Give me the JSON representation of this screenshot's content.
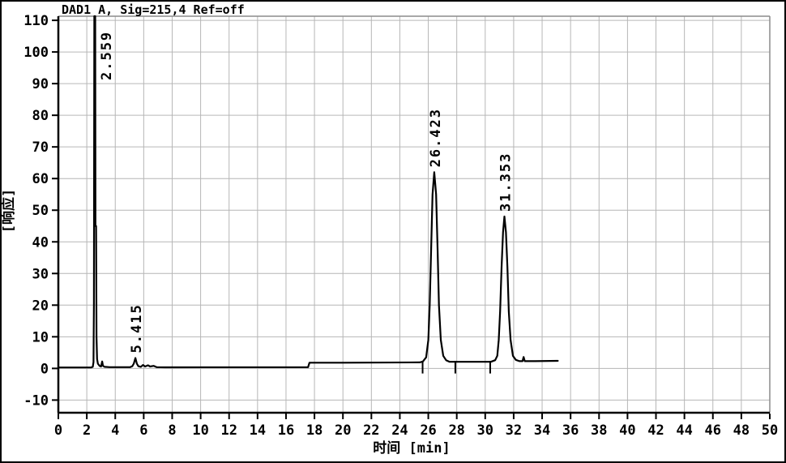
{
  "window": {
    "title": "DAD1 A, Sig=215,4 Ref=off"
  },
  "chart_data": {
    "type": "line",
    "title": "DAD1 A, Sig=215,4 Ref=off",
    "xlabel": "时间 [min]",
    "ylabel": "[响应]",
    "xlim": [
      0,
      50
    ],
    "ylim": [
      -14,
      111.3
    ],
    "x_ticks": [
      0,
      2,
      4,
      6,
      8,
      10,
      12,
      14,
      16,
      18,
      20,
      22,
      24,
      26,
      28,
      30,
      32,
      34,
      36,
      38,
      40,
      42,
      44,
      46,
      48,
      50
    ],
    "y_ticks": [
      -10,
      0,
      10,
      20,
      30,
      40,
      50,
      60,
      70,
      80,
      90,
      100,
      110
    ],
    "grid": true,
    "legend": null,
    "colors": {
      "trace": "#000000",
      "grid": "#b6b6b6",
      "axis": "#000000",
      "frame": "#8c8c8c",
      "background": "#ffffff",
      "text": "#000000"
    },
    "peaks": [
      {
        "label": "2.559",
        "time": 2.559,
        "height": 111.3,
        "clipped": true
      },
      {
        "label": "5.415",
        "time": 5.415,
        "height": 3.3,
        "clipped": false
      },
      {
        "label": "26.423",
        "time": 26.423,
        "height": 62,
        "clipped": false
      },
      {
        "label": "31.353",
        "time": 31.353,
        "height": 48,
        "clipped": false
      }
    ],
    "integration_ticks": [
      25.6,
      27.9,
      30.35
    ],
    "trace": [
      [
        0,
        0.3
      ],
      [
        2.3,
        0.3
      ],
      [
        2.42,
        0.5
      ],
      [
        2.47,
        2
      ],
      [
        2.5,
        20
      ],
      [
        2.53,
        111.3
      ],
      [
        2.59,
        111.3
      ],
      [
        2.61,
        45
      ],
      [
        2.655,
        45
      ],
      [
        2.68,
        10
      ],
      [
        2.72,
        3
      ],
      [
        2.78,
        1.5
      ],
      [
        2.9,
        0.8
      ],
      [
        3.0,
        0.6
      ],
      [
        3.08,
        2.2
      ],
      [
        3.14,
        0.8
      ],
      [
        3.25,
        0.5
      ],
      [
        3.6,
        0.4
      ],
      [
        5.05,
        0.4
      ],
      [
        5.2,
        0.7
      ],
      [
        5.3,
        1.5
      ],
      [
        5.415,
        3.3
      ],
      [
        5.52,
        1.5
      ],
      [
        5.62,
        0.7
      ],
      [
        5.8,
        0.5
      ],
      [
        5.95,
        1.1
      ],
      [
        6.1,
        0.6
      ],
      [
        6.3,
        1.0
      ],
      [
        6.45,
        0.6
      ],
      [
        6.7,
        0.8
      ],
      [
        6.9,
        0.4
      ],
      [
        7.5,
        0.35
      ],
      [
        17.55,
        0.4
      ],
      [
        17.65,
        1.8
      ],
      [
        20.0,
        1.8
      ],
      [
        25.4,
        1.9
      ],
      [
        25.62,
        2.2
      ],
      [
        25.85,
        3.5
      ],
      [
        26.0,
        9
      ],
      [
        26.1,
        20
      ],
      [
        26.2,
        38
      ],
      [
        26.3,
        55
      ],
      [
        26.42,
        62
      ],
      [
        26.55,
        55
      ],
      [
        26.65,
        38
      ],
      [
        26.75,
        20
      ],
      [
        26.88,
        9
      ],
      [
        27.05,
        4
      ],
      [
        27.25,
        2.6
      ],
      [
        27.5,
        2.1
      ],
      [
        30.4,
        2.1
      ],
      [
        30.7,
        2.6
      ],
      [
        30.85,
        4
      ],
      [
        30.95,
        9
      ],
      [
        31.05,
        18
      ],
      [
        31.15,
        32
      ],
      [
        31.25,
        43
      ],
      [
        31.35,
        48
      ],
      [
        31.46,
        43
      ],
      [
        31.56,
        32
      ],
      [
        31.66,
        18
      ],
      [
        31.78,
        9
      ],
      [
        31.95,
        4
      ],
      [
        32.15,
        2.7
      ],
      [
        32.4,
        2.3
      ],
      [
        32.62,
        2.3
      ],
      [
        32.7,
        3.6
      ],
      [
        32.78,
        2.3
      ],
      [
        33.5,
        2.3
      ],
      [
        35.1,
        2.4
      ]
    ]
  }
}
